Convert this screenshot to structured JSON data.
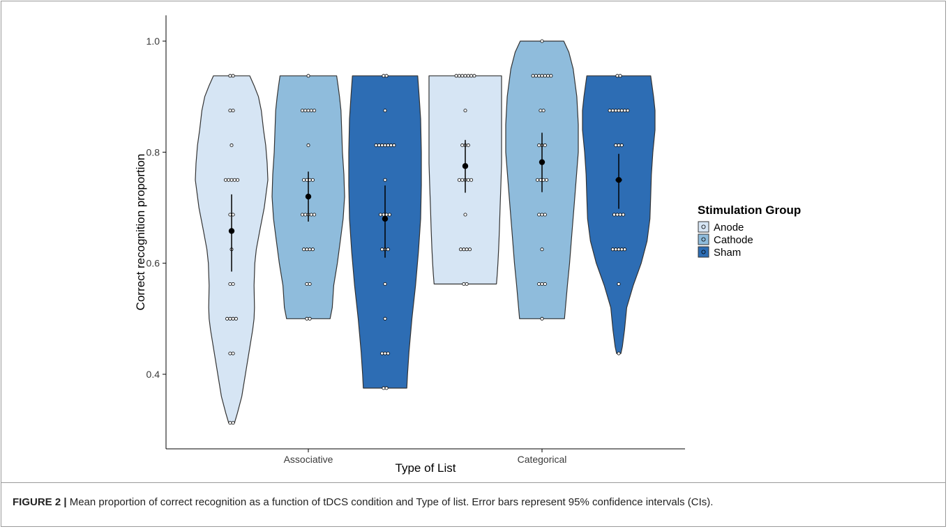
{
  "caption": {
    "label": "FIGURE 2 |",
    "text": " Mean proportion of correct recognition as a function of tDCS condition and Type of list. Error bars represent 95% confidence intervals (CIs)."
  },
  "colors": {
    "Anode": "#d6e5f4",
    "Cathode": "#8fbcdc",
    "Sham": "#2d6db4",
    "outline": "#333333",
    "mean": "#000000"
  },
  "chart_data": {
    "type": "violin",
    "title": "",
    "xlabel": "Type of List",
    "ylabel": "Correct recognition proportion",
    "categories": [
      "Associative",
      "Categorical"
    ],
    "ylim": [
      0.28,
      1.05
    ],
    "yticks": [
      0.4,
      0.6,
      0.8,
      1.0
    ],
    "ytick_labels": [
      "0.4",
      "0.6",
      "0.8",
      "1.0"
    ],
    "grid": false,
    "legend": {
      "title": "Stimulation Group",
      "position": "right",
      "entries": [
        "Anode",
        "Cathode",
        "Sham"
      ]
    },
    "series": [
      {
        "name": "Anode",
        "groups": [
          {
            "category": "Associative",
            "mean": 0.658,
            "ci_low": 0.585,
            "ci_high": 0.724,
            "violin_y": [
              0.3125,
              0.33,
              0.36,
              0.4,
              0.44,
              0.48,
              0.5,
              0.52,
              0.56,
              0.6,
              0.625,
              0.66,
              0.7,
              0.75,
              0.78,
              0.8125,
              0.84,
              0.875,
              0.9,
              0.92,
              0.9375
            ],
            "violin_w": [
              0.08,
              0.16,
              0.28,
              0.38,
              0.48,
              0.58,
              0.62,
              0.63,
              0.62,
              0.64,
              0.68,
              0.78,
              0.9,
              1.0,
              0.98,
              0.94,
              0.88,
              0.82,
              0.74,
              0.62,
              0.5
            ],
            "points": [
              [
                0.9375,
                2
              ],
              [
                0.875,
                2
              ],
              [
                0.8125,
                1
              ],
              [
                0.75,
                5
              ],
              [
                0.6875,
                2
              ],
              [
                0.625,
                1
              ],
              [
                0.5625,
                2
              ],
              [
                0.5,
                4
              ],
              [
                0.4375,
                2
              ],
              [
                0.3125,
                2
              ]
            ]
          },
          {
            "category": "Categorical",
            "mean": 0.775,
            "ci_low": 0.727,
            "ci_high": 0.822,
            "violin_y": [
              0.5625,
              0.58,
              0.6,
              0.625,
              0.66,
              0.7,
              0.74,
              0.78,
              0.82,
              0.86,
              0.9,
              0.92,
              0.9375
            ],
            "violin_w": [
              0.86,
              0.88,
              0.9,
              0.92,
              0.94,
              0.96,
              0.98,
              1.0,
              1.0,
              1.0,
              1.0,
              1.0,
              1.0
            ],
            "points": [
              [
                0.9375,
                7
              ],
              [
                0.875,
                1
              ],
              [
                0.8125,
                3
              ],
              [
                0.75,
                5
              ],
              [
                0.6875,
                1
              ],
              [
                0.625,
                4
              ],
              [
                0.5625,
                2
              ]
            ]
          }
        ]
      },
      {
        "name": "Cathode",
        "groups": [
          {
            "category": "Associative",
            "mean": 0.72,
            "ci_low": 0.675,
            "ci_high": 0.765,
            "violin_y": [
              0.5,
              0.52,
              0.56,
              0.6,
              0.64,
              0.68,
              0.72,
              0.76,
              0.8,
              0.84,
              0.875,
              0.9,
              0.92,
              0.9375
            ],
            "violin_w": [
              0.6,
              0.66,
              0.7,
              0.8,
              0.88,
              0.96,
              1.0,
              0.98,
              0.94,
              0.92,
              0.9,
              0.86,
              0.82,
              0.78
            ],
            "points": [
              [
                0.9375,
                1
              ],
              [
                0.875,
                5
              ],
              [
                0.8125,
                1
              ],
              [
                0.75,
                4
              ],
              [
                0.6875,
                5
              ],
              [
                0.625,
                4
              ],
              [
                0.5625,
                2
              ],
              [
                0.5,
                2
              ]
            ]
          },
          {
            "category": "Categorical",
            "mean": 0.782,
            "ci_low": 0.728,
            "ci_high": 0.835,
            "violin_y": [
              0.5,
              0.53,
              0.56,
              0.6,
              0.65,
              0.7,
              0.75,
              0.8,
              0.85,
              0.9,
              0.95,
              0.98,
              1.0
            ],
            "violin_w": [
              0.62,
              0.66,
              0.7,
              0.76,
              0.82,
              0.88,
              0.94,
              1.0,
              1.0,
              0.96,
              0.86,
              0.74,
              0.6
            ],
            "points": [
              [
                1.0,
                1
              ],
              [
                0.9375,
                7
              ],
              [
                0.875,
                2
              ],
              [
                0.8125,
                3
              ],
              [
                0.75,
                4
              ],
              [
                0.6875,
                3
              ],
              [
                0.625,
                1
              ],
              [
                0.5625,
                3
              ],
              [
                0.5,
                1
              ]
            ]
          }
        ]
      },
      {
        "name": "Sham",
        "groups": [
          {
            "category": "Associative",
            "mean": 0.68,
            "ci_low": 0.61,
            "ci_high": 0.74,
            "violin_y": [
              0.375,
              0.4,
              0.44,
              0.5,
              0.56,
              0.62,
              0.68,
              0.74,
              0.8,
              0.86,
              0.9,
              0.9375
            ],
            "violin_w": [
              0.6,
              0.62,
              0.66,
              0.74,
              0.84,
              0.92,
              0.98,
              1.0,
              1.0,
              0.98,
              0.94,
              0.9
            ],
            "points": [
              [
                0.9375,
                2
              ],
              [
                0.875,
                1
              ],
              [
                0.8125,
                7
              ],
              [
                0.75,
                1
              ],
              [
                0.6875,
                4
              ],
              [
                0.625,
                3
              ],
              [
                0.5625,
                1
              ],
              [
                0.5,
                1
              ],
              [
                0.4375,
                3
              ],
              [
                0.375,
                2
              ]
            ]
          },
          {
            "category": "Categorical",
            "mean": 0.75,
            "ci_low": 0.698,
            "ci_high": 0.797,
            "violin_y": [
              0.4375,
              0.45,
              0.48,
              0.52,
              0.56,
              0.6,
              0.64,
              0.68,
              0.72,
              0.76,
              0.8,
              0.84,
              0.875,
              0.9,
              0.9375
            ],
            "violin_w": [
              0.06,
              0.1,
              0.16,
              0.22,
              0.4,
              0.62,
              0.78,
              0.86,
              0.88,
              0.9,
              0.94,
              1.0,
              1.0,
              0.96,
              0.88
            ],
            "points": [
              [
                0.9375,
                2
              ],
              [
                0.875,
                7
              ],
              [
                0.8125,
                3
              ],
              [
                0.75,
                2
              ],
              [
                0.6875,
                4
              ],
              [
                0.625,
                5
              ],
              [
                0.5625,
                1
              ],
              [
                0.4375,
                1
              ]
            ]
          }
        ]
      }
    ]
  }
}
